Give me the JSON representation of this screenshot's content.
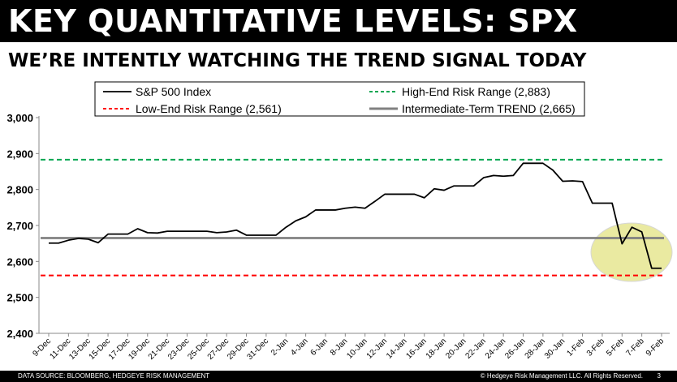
{
  "header": {
    "title": "KEY QUANTITATIVE LEVELS: SPX",
    "subtitle": "WE’RE INTENTLY WATCHING THE TREND SIGNAL TODAY"
  },
  "footer": {
    "source": "DATA SOURCE: BLOOMBERG, HEDGEYE RISK MANAGEMENT",
    "copyright": "© Hedgeye Risk Management LLC. All Rights Reserved.",
    "page": "3"
  },
  "chart_data": {
    "type": "line",
    "ylim": [
      2400,
      3000
    ],
    "yticks": [
      "2,400",
      "2,500",
      "2,600",
      "2,700",
      "2,800",
      "2,900",
      "3,000"
    ],
    "grid": false,
    "legend_position": "top",
    "x": [
      "9-Dec",
      "10-Dec",
      "11-Dec",
      "12-Dec",
      "13-Dec",
      "14-Dec",
      "15-Dec",
      "16-Dec",
      "17-Dec",
      "18-Dec",
      "19-Dec",
      "20-Dec",
      "21-Dec",
      "22-Dec",
      "23-Dec",
      "24-Dec",
      "25-Dec",
      "26-Dec",
      "27-Dec",
      "28-Dec",
      "29-Dec",
      "30-Dec",
      "31-Dec",
      "1-Jan",
      "2-Jan",
      "3-Jan",
      "4-Jan",
      "5-Jan",
      "6-Jan",
      "7-Jan",
      "8-Jan",
      "9-Jan",
      "10-Jan",
      "11-Jan",
      "12-Jan",
      "13-Jan",
      "14-Jan",
      "15-Jan",
      "16-Jan",
      "17-Jan",
      "18-Jan",
      "19-Jan",
      "20-Jan",
      "21-Jan",
      "22-Jan",
      "23-Jan",
      "24-Jan",
      "25-Jan",
      "26-Jan",
      "27-Jan",
      "28-Jan",
      "29-Jan",
      "30-Jan",
      "31-Jan",
      "1-Feb",
      "2-Feb",
      "3-Feb",
      "4-Feb",
      "5-Feb",
      "6-Feb",
      "7-Feb",
      "8-Feb",
      "9-Feb"
    ],
    "xtick_labels": [
      "9-Dec",
      "11-Dec",
      "13-Dec",
      "15-Dec",
      "17-Dec",
      "19-Dec",
      "21-Dec",
      "23-Dec",
      "25-Dec",
      "27-Dec",
      "29-Dec",
      "31-Dec",
      "2-Jan",
      "4-Jan",
      "6-Jan",
      "8-Jan",
      "10-Jan",
      "12-Jan",
      "14-Jan",
      "16-Jan",
      "18-Jan",
      "20-Jan",
      "22-Jan",
      "24-Jan",
      "26-Jan",
      "28-Jan",
      "30-Jan",
      "1-Feb",
      "3-Feb",
      "5-Feb",
      "7-Feb",
      "9-Feb"
    ],
    "series": [
      {
        "name": "S&P 500 Index",
        "color": "#000000",
        "style": "solid",
        "values": [
          2651,
          2651,
          2659,
          2664,
          2662,
          2652,
          2676,
          2676,
          2676,
          2691,
          2680,
          2679,
          2684,
          2684,
          2684,
          2684,
          2684,
          2680,
          2682,
          2687,
          2673,
          2673,
          2673,
          2673,
          2695,
          2713,
          2724,
          2743,
          2743,
          2743,
          2748,
          2751,
          2748,
          2767,
          2787,
          2787,
          2787,
          2787,
          2777,
          2802,
          2798,
          2810,
          2810,
          2810,
          2833,
          2839,
          2837,
          2839,
          2873,
          2873,
          2873,
          2854,
          2823,
          2824,
          2822,
          2762,
          2762,
          2762,
          2649,
          2695,
          2682,
          2581,
          2581
        ]
      },
      {
        "name": "High-End Risk Range (2,883)",
        "color": "#00a651",
        "style": "dashed",
        "level": 2883
      },
      {
        "name": "Low-End Risk Range (2,561)",
        "color": "#ff0000",
        "style": "dashed",
        "level": 2561
      },
      {
        "name": "Intermediate-Term TREND (2,665)",
        "color": "#808080",
        "style": "solid",
        "level": 2665
      }
    ],
    "highlight_color": "#e6e68a"
  }
}
